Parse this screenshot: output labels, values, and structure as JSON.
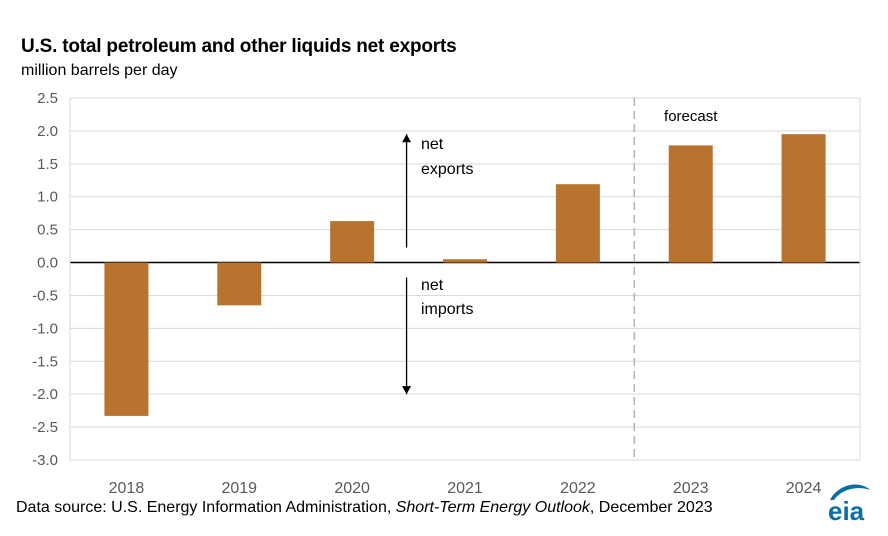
{
  "header": {
    "title": "U.S. total petroleum and other liquids net exports",
    "subtitle": "million barrels per day"
  },
  "chart_data": {
    "type": "bar",
    "categories": [
      "2018",
      "2019",
      "2020",
      "2021",
      "2022",
      "2023",
      "2024"
    ],
    "values": [
      -2.33,
      -0.65,
      0.63,
      0.05,
      1.19,
      1.78,
      1.95
    ],
    "ylim": [
      -3.0,
      2.5
    ],
    "yticks": [
      "2.5",
      "2.0",
      "1.5",
      "1.0",
      "0.5",
      "0.0",
      "-0.5",
      "-1.0",
      "-1.5",
      "-2.0",
      "-2.5",
      "-3.0"
    ],
    "grid": true,
    "bar_color": "#b8732e",
    "forecast_label": "forecast",
    "forecast_start_category": "2023",
    "annotation_up": [
      "net",
      "exports"
    ],
    "annotation_down": [
      "net",
      "imports"
    ]
  },
  "footer": {
    "source_prefix": "Data source: U.S. Energy Information Administration, ",
    "source_italic": "Short-Term Energy Outlook",
    "source_suffix": ", December 2023",
    "logo_text": "eia",
    "logo_color": "#0a6fa3"
  }
}
